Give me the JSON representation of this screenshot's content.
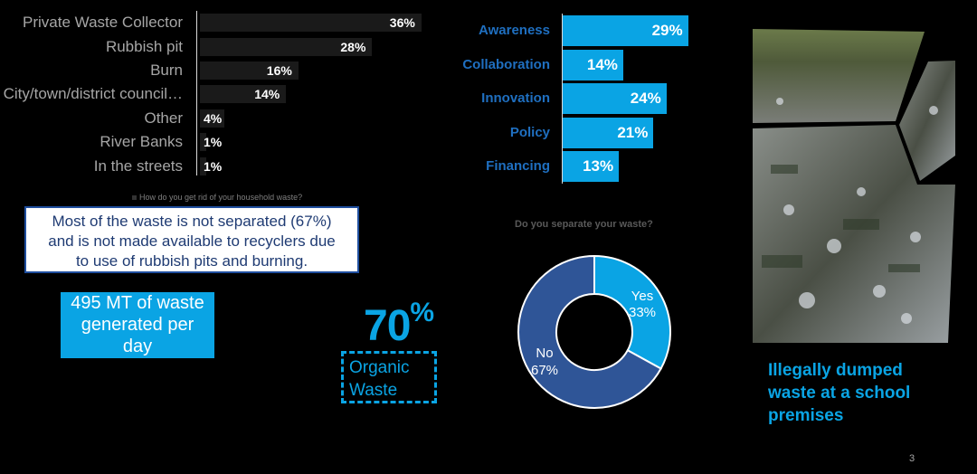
{
  "left_chart": {
    "caption": "How do you get rid of your household waste?",
    "rows": [
      {
        "label": "Private Waste Collector",
        "value_label": "36%"
      },
      {
        "label": "Rubbish pit",
        "value_label": "28%"
      },
      {
        "label": "Burn",
        "value_label": "16%"
      },
      {
        "label": "City/town/district council…",
        "value_label": "14%"
      },
      {
        "label": "Other",
        "value_label": "4%"
      },
      {
        "label": "River Banks",
        "value_label": "1%"
      },
      {
        "label": "In the streets",
        "value_label": "1%"
      }
    ]
  },
  "callout": {
    "line1": "Most of the waste is not separated (67%)",
    "line2": "and is not made available to recyclers due",
    "line3": "to use of rubbish pits and burning."
  },
  "waste_generated": {
    "line1": "495 MT of waste",
    "line2": "generated per",
    "line3": "day"
  },
  "organic": {
    "value": "70",
    "unit": "%",
    "line1": "Organic",
    "line2": "Waste"
  },
  "mid_chart": {
    "rows": [
      {
        "label": "Awareness",
        "value_label": "29%"
      },
      {
        "label": "Collaboration",
        "value_label": "14%"
      },
      {
        "label": "Innovation",
        "value_label": "24%"
      },
      {
        "label": "Policy",
        "value_label": "21%"
      },
      {
        "label": "Financing",
        "value_label": "13%"
      }
    ]
  },
  "donut": {
    "title": "Do you separate your waste?",
    "yes_label": "Yes",
    "yes_pct": "33%",
    "no_label": "No",
    "no_pct": "67%"
  },
  "photo": {
    "caption_line1": "Illegally dumped",
    "caption_line2": "waste at a school",
    "caption_line3": "premises"
  },
  "page_number": "3",
  "chart_data": [
    {
      "type": "bar",
      "categories": [
        "Private Waste Collector",
        "Rubbish pit",
        "Burn",
        "City/town/district council…",
        "Other",
        "River Banks",
        "In the streets"
      ],
      "values": [
        36,
        28,
        16,
        14,
        4,
        1,
        1
      ],
      "title": "",
      "xlabel": "",
      "ylabel": ""
    },
    {
      "type": "bar",
      "categories": [
        "Awareness",
        "Collaboration",
        "Innovation",
        "Policy",
        "Financing"
      ],
      "values": [
        29,
        14,
        24,
        21,
        13
      ],
      "title": "",
      "xlabel": "",
      "ylabel": ""
    },
    {
      "type": "pie",
      "categories": [
        "Yes",
        "No"
      ],
      "values": [
        33,
        67
      ],
      "title": "Do you separate your waste?"
    }
  ],
  "colors": {
    "accent": "#0aa4e4",
    "navy": "#2f5597",
    "dark_bar": "#1a1a1a"
  }
}
